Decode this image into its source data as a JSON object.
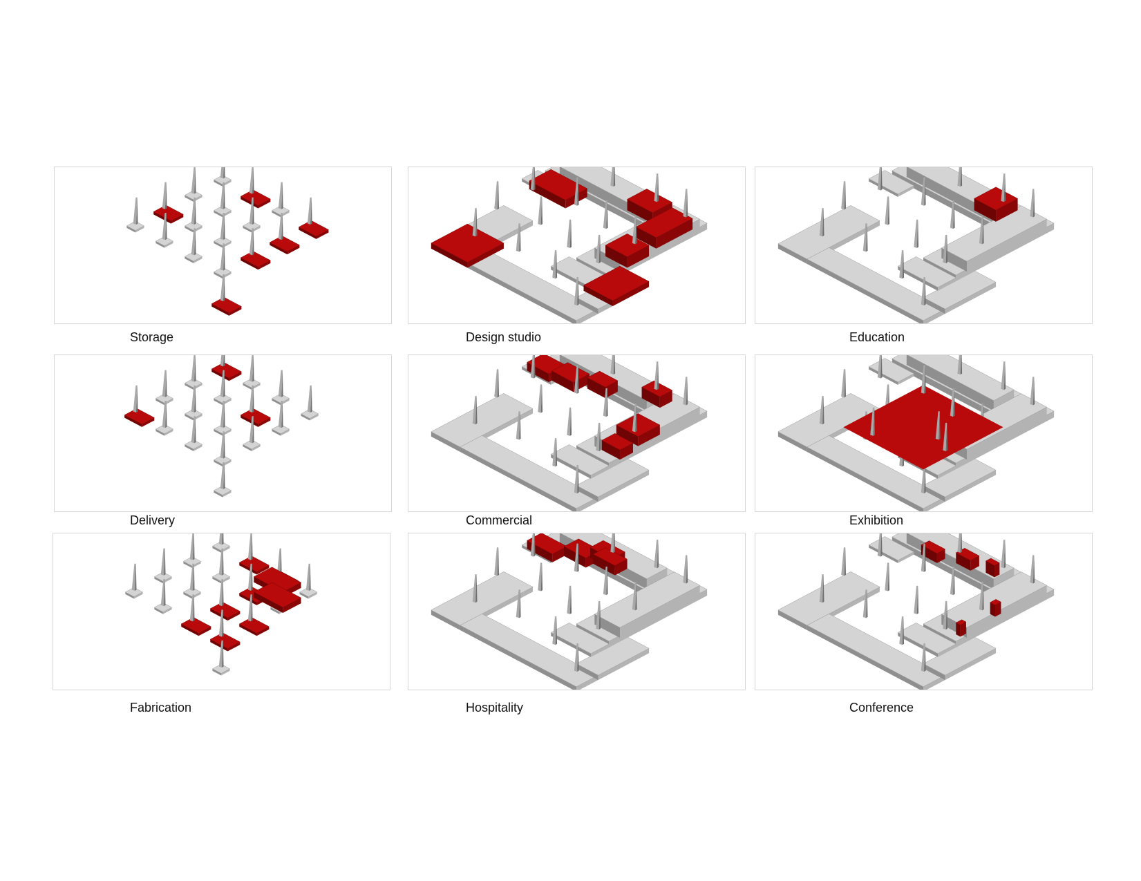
{
  "colors": {
    "highlight": "#b80a0a",
    "highlight_dark": "#6e0404",
    "mass_top": "#d4d4d4",
    "mass_side": "#8f8f8f",
    "frame": "#d6d6d6"
  },
  "panels": [
    {
      "label": "Storage"
    },
    {
      "label": "Design studio"
    },
    {
      "label": "Education"
    },
    {
      "label": "Delivery"
    },
    {
      "label": "Commercial"
    },
    {
      "label": "Exhibition"
    },
    {
      "label": "Fabrication"
    },
    {
      "label": "Hospitality"
    },
    {
      "label": "Conference"
    }
  ]
}
